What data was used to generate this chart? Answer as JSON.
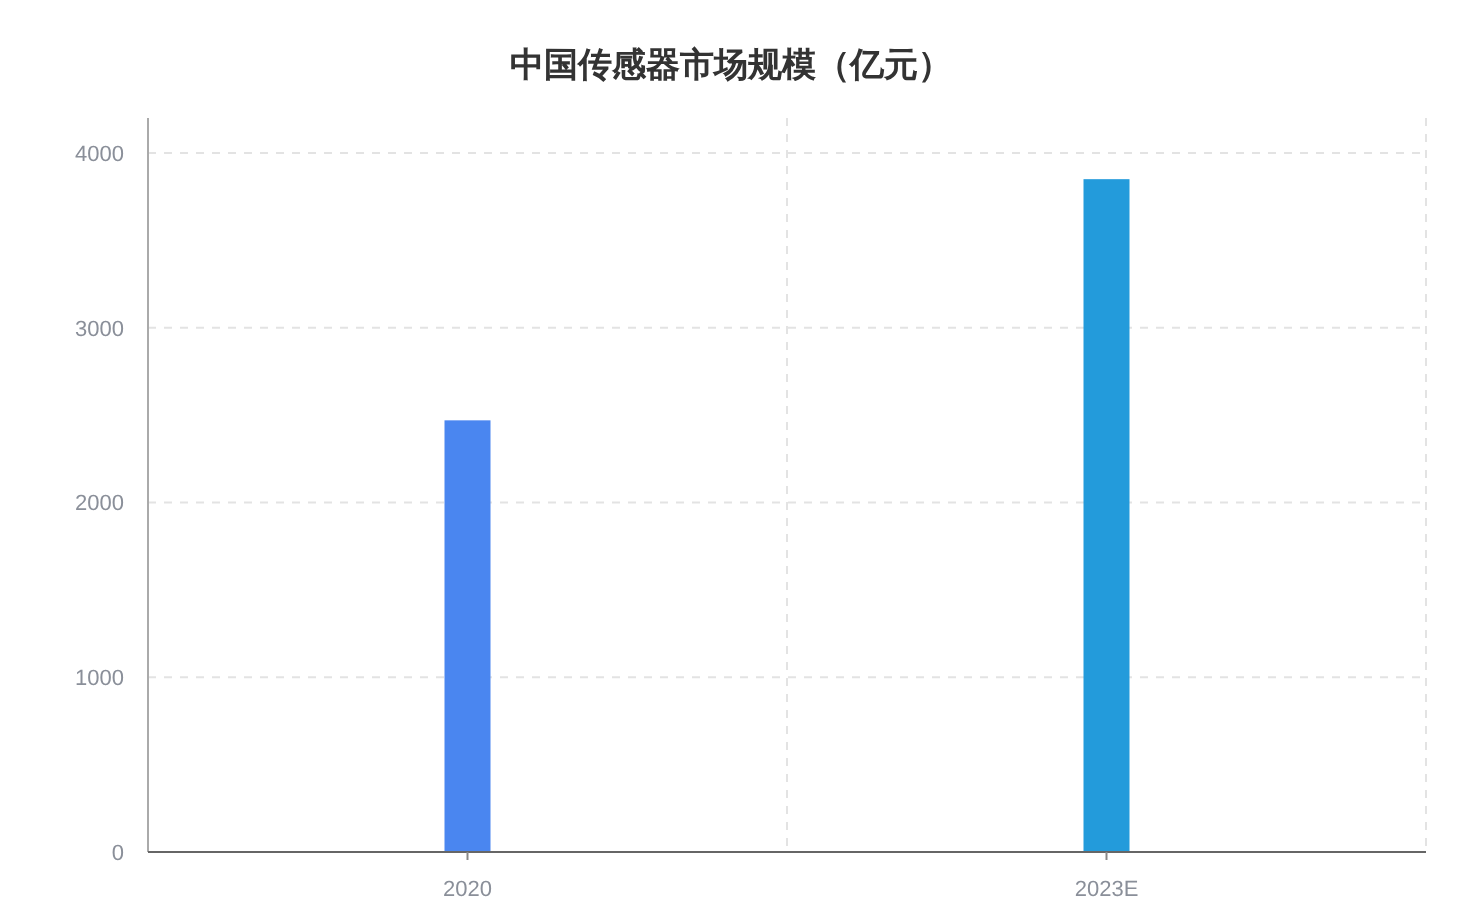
{
  "chart_data": {
    "type": "bar",
    "title": "中国传感器市场规模（亿元）",
    "categories": [
      "2020",
      "2023E"
    ],
    "values": [
      2470,
      3850
    ],
    "colors": [
      "#4a86f0",
      "#239bdb"
    ],
    "ylim": [
      0,
      4200
    ],
    "yticks": [
      0,
      1000,
      2000,
      3000,
      4000
    ],
    "grid": true
  }
}
